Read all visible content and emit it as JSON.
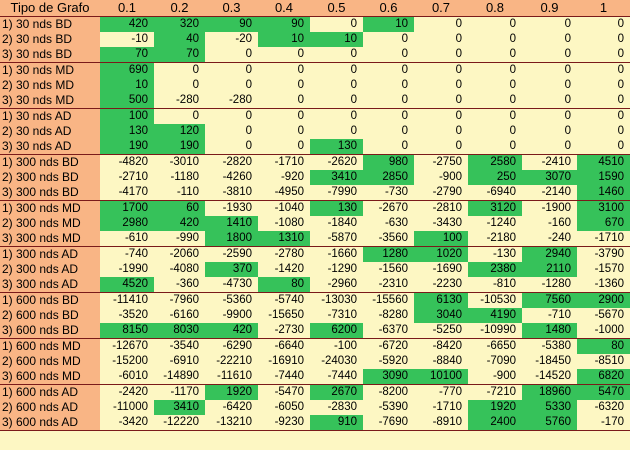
{
  "header": {
    "corner": "Tipo de Grafo",
    "columns": [
      "0.1",
      "0.2",
      "0.3",
      "0.4",
      "0.5",
      "0.6",
      "0.7",
      "0.8",
      "0.9",
      "1"
    ]
  },
  "colors": {
    "header_bg": "#f9b585",
    "cell_bg": "#fdf7c3",
    "highlight": "#36c25a",
    "divider": "#7a1a1a"
  },
  "rows": [
    {
      "label": "1) 30 nds BD",
      "values": [
        "420",
        "320",
        "90",
        "90",
        "0",
        "10",
        "0",
        "0",
        "0",
        "0"
      ],
      "hl": [
        1,
        1,
        1,
        1,
        0,
        1,
        0,
        0,
        0,
        0
      ]
    },
    {
      "label": "2) 30 nds BD",
      "values": [
        "-10",
        "40",
        "-20",
        "10",
        "10",
        "0",
        "0",
        "0",
        "0",
        "0"
      ],
      "hl": [
        0,
        1,
        0,
        1,
        1,
        0,
        0,
        0,
        0,
        0
      ]
    },
    {
      "label": "3) 30 nds BD",
      "values": [
        "70",
        "70",
        "0",
        "0",
        "0",
        "0",
        "0",
        "0",
        "0",
        "0"
      ],
      "hl": [
        1,
        1,
        0,
        0,
        0,
        0,
        0,
        0,
        0,
        0
      ]
    },
    {
      "label": "1) 30 nds MD",
      "values": [
        "690",
        "0",
        "0",
        "0",
        "0",
        "0",
        "0",
        "0",
        "0",
        "0"
      ],
      "hl": [
        1,
        0,
        0,
        0,
        0,
        0,
        0,
        0,
        0,
        0
      ]
    },
    {
      "label": "2) 30 nds MD",
      "values": [
        "10",
        "0",
        "0",
        "0",
        "0",
        "0",
        "0",
        "0",
        "0",
        "0"
      ],
      "hl": [
        1,
        0,
        0,
        0,
        0,
        0,
        0,
        0,
        0,
        0
      ]
    },
    {
      "label": "3) 30 nds MD",
      "values": [
        "500",
        "-280",
        "-280",
        "0",
        "0",
        "0",
        "0",
        "0",
        "0",
        "0"
      ],
      "hl": [
        1,
        0,
        0,
        0,
        0,
        0,
        0,
        0,
        0,
        0
      ]
    },
    {
      "label": "1) 30 nds AD",
      "values": [
        "100",
        "0",
        "0",
        "0",
        "0",
        "0",
        "0",
        "0",
        "0",
        "0"
      ],
      "hl": [
        1,
        0,
        0,
        0,
        0,
        0,
        0,
        0,
        0,
        0
      ]
    },
    {
      "label": "2) 30 nds AD",
      "values": [
        "130",
        "120",
        "0",
        "0",
        "0",
        "0",
        "0",
        "0",
        "0",
        "0"
      ],
      "hl": [
        1,
        1,
        0,
        0,
        0,
        0,
        0,
        0,
        0,
        0
      ]
    },
    {
      "label": "3) 30 nds AD",
      "values": [
        "190",
        "190",
        "0",
        "0",
        "130",
        "0",
        "0",
        "0",
        "0",
        "0"
      ],
      "hl": [
        1,
        1,
        0,
        0,
        1,
        0,
        0,
        0,
        0,
        0
      ]
    },
    {
      "label": "1) 300 nds BD",
      "values": [
        "-4820",
        "-3010",
        "-2820",
        "-1710",
        "-2620",
        "980",
        "-2750",
        "2580",
        "-2410",
        "4510"
      ],
      "hl": [
        0,
        0,
        0,
        0,
        0,
        1,
        0,
        1,
        0,
        1
      ]
    },
    {
      "label": "2) 300 nds BD",
      "values": [
        "-2710",
        "-1180",
        "-4260",
        "-920",
        "3410",
        "2850",
        "-900",
        "250",
        "3070",
        "1590"
      ],
      "hl": [
        0,
        0,
        0,
        0,
        1,
        1,
        0,
        1,
        1,
        1
      ]
    },
    {
      "label": "3) 300 nds BD",
      "values": [
        "-4170",
        "-110",
        "-3810",
        "-4950",
        "-7990",
        "-730",
        "-2790",
        "-6940",
        "-2140",
        "1460"
      ],
      "hl": [
        0,
        0,
        0,
        0,
        0,
        0,
        0,
        0,
        0,
        1
      ]
    },
    {
      "label": "1) 300 nds MD",
      "values": [
        "1700",
        "60",
        "-1930",
        "-1040",
        "130",
        "-2670",
        "-2810",
        "3120",
        "-1900",
        "3100"
      ],
      "hl": [
        1,
        1,
        0,
        0,
        1,
        0,
        0,
        1,
        0,
        1
      ]
    },
    {
      "label": "2) 300 nds MD",
      "values": [
        "2980",
        "420",
        "1410",
        "-1080",
        "-1840",
        "-630",
        "-3430",
        "-1240",
        "-160",
        "670"
      ],
      "hl": [
        1,
        1,
        1,
        0,
        0,
        0,
        0,
        0,
        0,
        1
      ]
    },
    {
      "label": "3) 300 nds MD",
      "values": [
        "-610",
        "-990",
        "1800",
        "1310",
        "-5870",
        "-3560",
        "100",
        "-2180",
        "-240",
        "-1710"
      ],
      "hl": [
        0,
        0,
        1,
        1,
        0,
        0,
        1,
        0,
        0,
        0
      ]
    },
    {
      "label": "1) 300 nds AD",
      "values": [
        "-740",
        "-2060",
        "-2590",
        "-2780",
        "-1660",
        "1280",
        "1020",
        "-130",
        "2940",
        "-3790"
      ],
      "hl": [
        0,
        0,
        0,
        0,
        0,
        1,
        1,
        0,
        1,
        0
      ]
    },
    {
      "label": "2) 300 nds AD",
      "values": [
        "-1990",
        "-4080",
        "370",
        "-1420",
        "-1290",
        "-1560",
        "-1690",
        "2380",
        "2110",
        "-1570"
      ],
      "hl": [
        0,
        0,
        1,
        0,
        0,
        0,
        0,
        1,
        1,
        0
      ]
    },
    {
      "label": "3) 300 nds AD",
      "values": [
        "4520",
        "-360",
        "-4730",
        "80",
        "-2960",
        "-2310",
        "-2230",
        "-810",
        "-1280",
        "-1360"
      ],
      "hl": [
        1,
        0,
        0,
        1,
        0,
        0,
        0,
        0,
        0,
        0
      ]
    },
    {
      "label": "1) 600 nds BD",
      "values": [
        "-11410",
        "-7960",
        "-5360",
        "-5740",
        "-13030",
        "-15560",
        "6130",
        "-10530",
        "7560",
        "2900"
      ],
      "hl": [
        0,
        0,
        0,
        0,
        0,
        0,
        1,
        0,
        1,
        1
      ]
    },
    {
      "label": "2) 600 nds BD",
      "values": [
        "-3520",
        "-6160",
        "-9900",
        "-15650",
        "-7310",
        "-8280",
        "3040",
        "4190",
        "-710",
        "-5670"
      ],
      "hl": [
        0,
        0,
        0,
        0,
        0,
        0,
        1,
        1,
        0,
        0
      ]
    },
    {
      "label": "3) 600 nds BD",
      "values": [
        "8150",
        "8030",
        "420",
        "-2730",
        "6200",
        "-6370",
        "-5250",
        "-10990",
        "1480",
        "-1000"
      ],
      "hl": [
        1,
        1,
        1,
        0,
        1,
        0,
        0,
        0,
        1,
        0
      ]
    },
    {
      "label": "1) 600 nds MD",
      "values": [
        "-12670",
        "-3540",
        "-6290",
        "-6640",
        "-100",
        "-6720",
        "-8420",
        "-6650",
        "-5380",
        "80"
      ],
      "hl": [
        0,
        0,
        0,
        0,
        0,
        0,
        0,
        0,
        0,
        1
      ]
    },
    {
      "label": "2) 600 nds MD",
      "values": [
        "-15200",
        "-6910",
        "-22210",
        "-16910",
        "-24030",
        "-5920",
        "-8840",
        "-7090",
        "-18450",
        "-8510"
      ],
      "hl": [
        0,
        0,
        0,
        0,
        0,
        0,
        0,
        0,
        0,
        0
      ]
    },
    {
      "label": "3) 600 nds MD",
      "values": [
        "-6010",
        "-14890",
        "-11610",
        "-7440",
        "-7440",
        "3090",
        "10100",
        "-900",
        "-14520",
        "6820"
      ],
      "hl": [
        0,
        0,
        0,
        0,
        0,
        1,
        1,
        0,
        0,
        1
      ]
    },
    {
      "label": "1) 600 nds AD",
      "values": [
        "-2420",
        "-1170",
        "1920",
        "-5470",
        "2670",
        "-8200",
        "-770",
        "-7210",
        "18960",
        "5470"
      ],
      "hl": [
        0,
        0,
        1,
        0,
        1,
        0,
        0,
        0,
        1,
        1
      ]
    },
    {
      "label": "2) 600 nds AD",
      "values": [
        "-11000",
        "3410",
        "-6420",
        "-6050",
        "-2830",
        "-5390",
        "-1710",
        "1920",
        "5330",
        "-6320"
      ],
      "hl": [
        0,
        1,
        0,
        0,
        0,
        0,
        0,
        1,
        1,
        0
      ]
    },
    {
      "label": "3) 600 nds AD",
      "values": [
        "-3420",
        "-12220",
        "-13210",
        "-9230",
        "910",
        "-7690",
        "-8910",
        "2400",
        "5760",
        "-170"
      ],
      "hl": [
        0,
        0,
        0,
        0,
        1,
        0,
        0,
        1,
        1,
        0
      ]
    }
  ]
}
